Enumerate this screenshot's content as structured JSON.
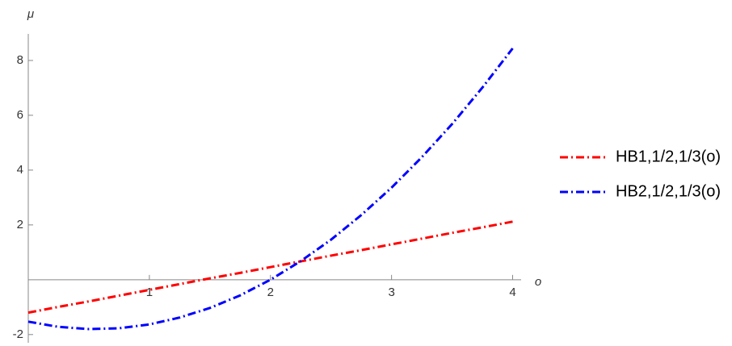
{
  "chart_data": {
    "type": "line",
    "x_label": "o",
    "y_label": "μ",
    "x": [
      0,
      0.25,
      0.5,
      0.75,
      1,
      1.25,
      1.5,
      1.75,
      2,
      2.25,
      2.5,
      2.75,
      3,
      3.25,
      3.5,
      3.75,
      4
    ],
    "series": [
      {
        "name": "HB1,1/2,1/3(o)",
        "color": "#ff0000",
        "values": [
          -1.2,
          -0.99,
          -0.79,
          -0.58,
          -0.37,
          -0.16,
          0.05,
          0.25,
          0.46,
          0.67,
          0.88,
          1.08,
          1.29,
          1.5,
          1.71,
          1.91,
          2.12
        ]
      },
      {
        "name": "HB2,1/2,1/3(o)",
        "color": "#0000ff",
        "values": [
          -1.53,
          -1.72,
          -1.8,
          -1.77,
          -1.63,
          -1.38,
          -1.03,
          -0.57,
          0.0,
          0.68,
          1.46,
          2.36,
          3.36,
          4.47,
          5.68,
          7.01,
          8.44
        ]
      }
    ],
    "xlim": [
      0,
      4.07
    ],
    "ylim": [
      -2.3,
      8.97
    ],
    "xticks": [
      1,
      2,
      3,
      4
    ],
    "yticks": [
      -2,
      2,
      4,
      6,
      8
    ]
  }
}
